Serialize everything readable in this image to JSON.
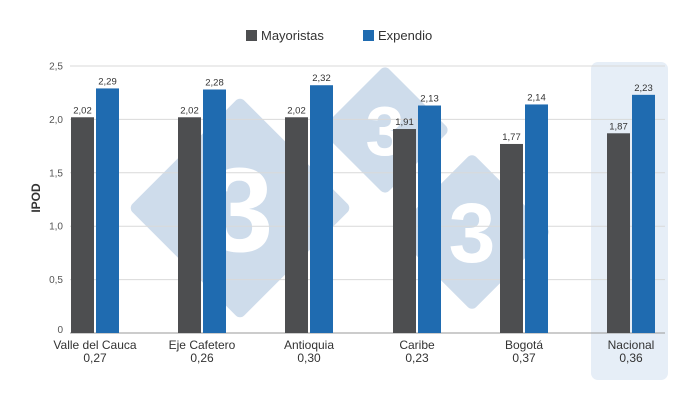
{
  "chart_data": {
    "type": "bar",
    "title": "",
    "xlabel": "",
    "ylabel": "IPOD",
    "ylim": [
      0,
      2.5
    ],
    "yticks": [
      "0",
      "0,5",
      "1,0",
      "1,5",
      "2,0",
      "2,5"
    ],
    "grid": true,
    "legend": "top-center",
    "categories": [
      "Valle del Cauca",
      "Eje Cafetero",
      "Antioquia",
      "Caribe",
      "Bogotá",
      "Nacional"
    ],
    "category_values": [
      "0,27",
      "0,26",
      "0,30",
      "0,23",
      "0,37",
      "0,36"
    ],
    "highlighted_category": "Nacional",
    "series": [
      {
        "name": "Mayoristas",
        "color": "#4d4e50",
        "values": [
          2.02,
          2.02,
          2.02,
          1.91,
          1.77,
          1.87
        ],
        "labels": [
          "2,02",
          "2,02",
          "2,02",
          "1,91",
          "1,77",
          "1,87"
        ]
      },
      {
        "name": "Expendio",
        "color": "#1f6bb0",
        "values": [
          2.29,
          2.28,
          2.32,
          2.13,
          2.14,
          2.23
        ],
        "labels": [
          "2,29",
          "2,28",
          "2,32",
          "2,13",
          "2,14",
          "2,23"
        ]
      }
    ]
  },
  "watermark": {
    "glyph": "3",
    "color": "#c5d6e7"
  }
}
